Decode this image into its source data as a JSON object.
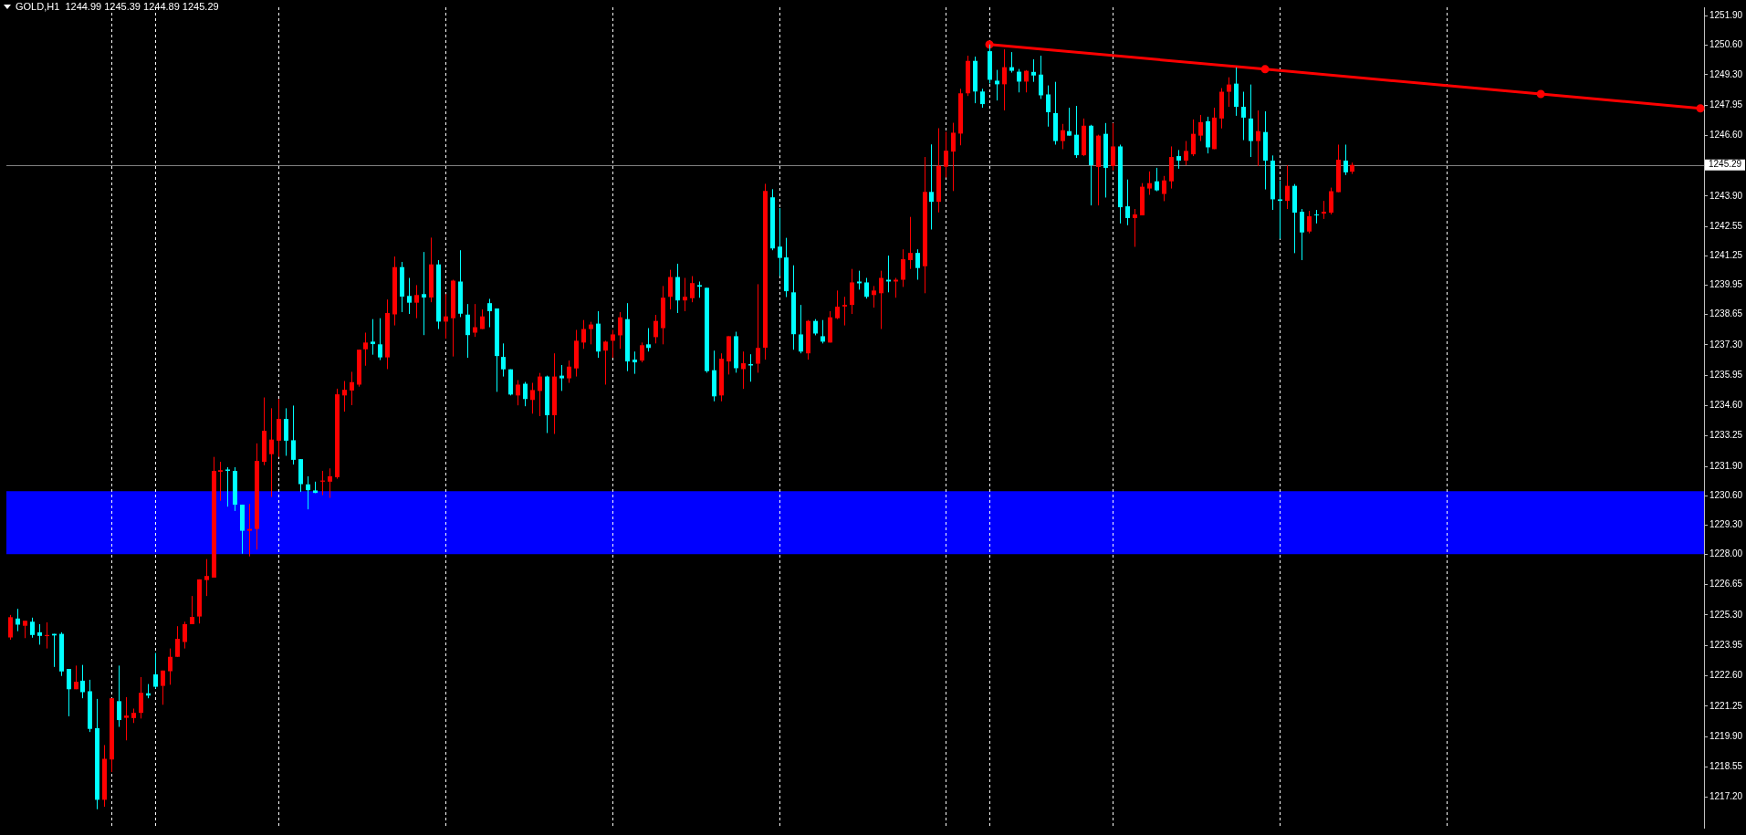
{
  "chart_data": {
    "type": "candlestick",
    "title": "GOLD,H1  1244.99 1245.39 1244.89 1245.29",
    "categories": [
      null,
      null,
      null,
      null,
      null,
      null,
      null,
      null,
      null,
      null,
      null,
      null,
      null,
      null,
      null,
      null,
      null,
      null,
      null,
      null,
      null,
      null,
      null,
      null,
      null,
      null,
      null,
      null,
      null,
      null,
      null,
      null,
      null,
      null,
      null,
      null,
      null,
      null,
      null,
      null,
      null,
      null,
      null,
      null,
      null,
      null,
      null,
      null,
      null,
      null,
      null,
      null,
      null,
      null,
      null,
      null,
      null,
      null,
      null,
      null,
      null,
      null,
      null,
      null,
      null,
      null,
      null,
      null,
      null,
      null,
      null,
      null,
      null,
      null,
      null,
      null,
      null,
      null,
      null,
      null,
      null,
      null,
      null,
      null,
      null,
      null,
      null,
      null,
      null,
      null,
      null,
      null,
      null,
      null,
      null,
      null,
      null,
      null,
      null,
      null,
      null,
      null,
      null,
      null,
      null,
      null,
      null,
      null,
      null,
      null,
      null,
      null,
      null,
      null,
      null,
      null,
      null,
      null,
      null,
      null,
      null,
      null,
      null,
      null,
      null,
      null,
      null,
      null,
      null,
      null,
      null,
      null,
      null,
      null,
      null,
      null,
      null,
      null,
      null,
      null,
      null,
      null,
      null,
      null,
      null,
      null,
      null,
      null,
      null,
      null,
      null,
      null,
      null,
      null,
      null,
      null,
      null,
      null,
      null,
      null,
      null,
      null,
      null,
      null,
      null,
      null,
      null,
      null,
      null,
      null,
      null,
      null,
      null,
      null,
      null,
      null,
      null,
      null,
      null,
      null,
      null,
      null,
      null,
      null,
      null,
      null,
      null,
      null,
      null,
      null,
      null,
      null,
      null,
      null,
      null,
      null,
      null,
      null,
      null,
      null,
      null,
      null,
      null,
      null,
      null,
      null,
      null,
      null,
      null,
      null,
      null,
      null,
      null,
      null,
      null,
      null,
      null,
      null,
      null,
      null,
      null,
      null,
      null,
      null,
      null,
      null,
      null,
      null,
      null,
      null,
      null,
      null,
      null,
      null
    ],
    "ohlc": [
      [
        1224.3,
        1225.3,
        1224.2,
        1225.2
      ],
      [
        1225.14,
        1225.57,
        1224.58,
        1224.87
      ],
      [
        1224.82,
        1225.04,
        1224.27,
        1225.04
      ],
      [
        1225.0,
        1225.18,
        1224.29,
        1224.41
      ],
      [
        1224.53,
        1224.89,
        1223.98,
        1224.37
      ],
      [
        1224.36,
        1224.97,
        1223.81,
        1224.41
      ],
      [
        1224.46,
        1224.46,
        1222.99,
        1224.39
      ],
      [
        1224.46,
        1224.53,
        1222.59,
        1222.79
      ],
      [
        1222.9,
        1222.9,
        1220.8,
        1222.0
      ],
      [
        1222.0,
        1223.05,
        1222.0,
        1222.33
      ],
      [
        1222.38,
        1223.08,
        1221.6,
        1221.87
      ],
      [
        1221.91,
        1222.42,
        1220.1,
        1220.24
      ],
      [
        1220.27,
        1221.57,
        1216.67,
        1217.09
      ],
      [
        1217.09,
        1219.52,
        1216.78,
        1218.91
      ],
      [
        1218.88,
        1221.6,
        1218.32,
        1221.6
      ],
      [
        1221.47,
        1223.05,
        1220.33,
        1220.63
      ],
      [
        1220.73,
        1221.65,
        1219.73,
        1220.83
      ],
      [
        1220.72,
        1221.14,
        1220.5,
        1220.95
      ],
      [
        1220.95,
        1222.54,
        1220.7,
        1221.84
      ],
      [
        1221.82,
        1222.23,
        1221.6,
        1221.72
      ],
      [
        1222.66,
        1223.61,
        1222.03,
        1222.11
      ],
      [
        1222.15,
        1222.83,
        1221.31,
        1222.83
      ],
      [
        1222.8,
        1223.81,
        1222.2,
        1223.44
      ],
      [
        1223.44,
        1224.8,
        1223.44,
        1224.24
      ],
      [
        1224.1,
        1225.0,
        1223.81,
        1224.89
      ],
      [
        1224.89,
        1226.14,
        1224.89,
        1225.21
      ],
      [
        1225.23,
        1226.88,
        1224.92,
        1226.88
      ],
      [
        1226.85,
        1227.78,
        1226.14,
        1227.03
      ],
      [
        1226.96,
        1232.32,
        1226.96,
        1231.7
      ],
      [
        1231.66,
        1232.1,
        1230.37,
        1231.73
      ],
      [
        1231.76,
        1231.86,
        1230.11,
        1231.7
      ],
      [
        1231.7,
        1231.86,
        1229.92,
        1230.2
      ],
      [
        1230.2,
        1230.2,
        1228.02,
        1229.04
      ],
      [
        1229.04,
        1230.23,
        1227.9,
        1229.12
      ],
      [
        1229.12,
        1232.92,
        1228.2,
        1232.14
      ],
      [
        1232.1,
        1234.96,
        1231.95,
        1233.48
      ],
      [
        1232.44,
        1234.48,
        1230.54,
        1233.09
      ],
      [
        1233.04,
        1234.89,
        1232.32,
        1234.01
      ],
      [
        1234.01,
        1234.48,
        1232.37,
        1233.04
      ],
      [
        1233.06,
        1234.6,
        1231.98,
        1232.19
      ],
      [
        1232.22,
        1232.22,
        1230.76,
        1231.11
      ],
      [
        1231.1,
        1231.46,
        1229.99,
        1230.84
      ],
      [
        1230.83,
        1231.22,
        1230.71,
        1230.72
      ],
      [
        1231.22,
        1231.7,
        1230.62,
        1231.27
      ],
      [
        1231.22,
        1231.81,
        1230.5,
        1231.46
      ],
      [
        1231.42,
        1235.35,
        1231.35,
        1235.1
      ],
      [
        1235.05,
        1235.69,
        1234.33,
        1235.3
      ],
      [
        1235.27,
        1236.1,
        1234.62,
        1235.64
      ],
      [
        1235.53,
        1237.08,
        1235.44,
        1237.08
      ],
      [
        1237.1,
        1237.84,
        1236.37,
        1237.4
      ],
      [
        1237.44,
        1238.44,
        1236.86,
        1237.33
      ],
      [
        1237.32,
        1238.48,
        1236.62,
        1236.74
      ],
      [
        1236.74,
        1239.31,
        1236.22,
        1238.71
      ],
      [
        1238.65,
        1241.22,
        1238.16,
        1240.75
      ],
      [
        1240.75,
        1240.98,
        1238.75,
        1239.44
      ],
      [
        1239.47,
        1240.27,
        1238.67,
        1239.17
      ],
      [
        1239.17,
        1239.95,
        1238.48,
        1239.51
      ],
      [
        1239.55,
        1241.42,
        1237.73,
        1239.4
      ],
      [
        1239.4,
        1242.06,
        1239.19,
        1240.87
      ],
      [
        1240.87,
        1241.06,
        1238.0,
        1238.33
      ],
      [
        1238.33,
        1239.55,
        1237.57,
        1238.56
      ],
      [
        1238.48,
        1240.19,
        1236.78,
        1240.15
      ],
      [
        1240.11,
        1241.5,
        1238.53,
        1238.68
      ],
      [
        1238.64,
        1239.11,
        1236.72,
        1237.73
      ],
      [
        1237.84,
        1239.11,
        1237.65,
        1238.08
      ],
      [
        1238.0,
        1238.87,
        1238.0,
        1238.56
      ],
      [
        1239.15,
        1239.34,
        1238.08,
        1238.79
      ],
      [
        1238.91,
        1238.91,
        1235.21,
        1236.8
      ],
      [
        1236.76,
        1237.36,
        1235.89,
        1236.21
      ],
      [
        1236.21,
        1236.21,
        1235.05,
        1235.09
      ],
      [
        1235.05,
        1235.73,
        1234.61,
        1235.53
      ],
      [
        1235.57,
        1235.65,
        1234.57,
        1234.89
      ],
      [
        1234.85,
        1235.61,
        1234.24,
        1235.29
      ],
      [
        1235.25,
        1236.05,
        1234.13,
        1235.89
      ],
      [
        1235.89,
        1235.93,
        1233.38,
        1234.17
      ],
      [
        1234.17,
        1236.92,
        1233.34,
        1235.89
      ],
      [
        1235.93,
        1236.4,
        1235.25,
        1235.81
      ],
      [
        1235.81,
        1236.6,
        1235.61,
        1236.33
      ],
      [
        1236.25,
        1237.96,
        1235.89,
        1237.48
      ],
      [
        1237.4,
        1238.4,
        1237.12,
        1238.0
      ],
      [
        1238.0,
        1238.32,
        1237.32,
        1238.2
      ],
      [
        1238.24,
        1238.79,
        1236.72,
        1237.0
      ],
      [
        1237.04,
        1237.48,
        1235.53,
        1237.44
      ],
      [
        1237.48,
        1237.96,
        1236.72,
        1237.76
      ],
      [
        1237.72,
        1238.75,
        1237.12,
        1238.52
      ],
      [
        1238.44,
        1239.15,
        1236.13,
        1236.56
      ],
      [
        1236.64,
        1237.0,
        1236.01,
        1236.52
      ],
      [
        1236.6,
        1237.4,
        1236.52,
        1237.28
      ],
      [
        1237.32,
        1238.04,
        1237.0,
        1237.16
      ],
      [
        1237.64,
        1238.63,
        1237.36,
        1238.36
      ],
      [
        1238.04,
        1239.91,
        1237.32,
        1239.39
      ],
      [
        1239.43,
        1240.63,
        1238.87,
        1240.31
      ],
      [
        1240.31,
        1240.9,
        1238.71,
        1239.27
      ],
      [
        1239.27,
        1240.27,
        1238.79,
        1239.43
      ],
      [
        1239.37,
        1240.35,
        1239.19,
        1240.04
      ],
      [
        1239.95,
        1240.11,
        1239.39,
        1239.88
      ],
      [
        1239.83,
        1239.83,
        1236.06,
        1236.13
      ],
      [
        1236.17,
        1237.04,
        1234.79,
        1235.01
      ],
      [
        1235.05,
        1236.92,
        1234.79,
        1236.68
      ],
      [
        1236.56,
        1237.68,
        1235.98,
        1237.68
      ],
      [
        1237.68,
        1237.88,
        1236.06,
        1236.26
      ],
      [
        1236.22,
        1237.0,
        1235.34,
        1236.48
      ],
      [
        1236.44,
        1236.88,
        1235.66,
        1236.38
      ],
      [
        1236.46,
        1239.99,
        1236.06,
        1237.16
      ],
      [
        1237.17,
        1244.45,
        1236.64,
        1244.13
      ],
      [
        1243.85,
        1244.21,
        1241.5,
        1241.58
      ],
      [
        1241.66,
        1243.37,
        1240.35,
        1241.16
      ],
      [
        1241.18,
        1242.05,
        1239.42,
        1239.68
      ],
      [
        1239.63,
        1240.83,
        1237.08,
        1237.77
      ],
      [
        1237.76,
        1239.07,
        1236.92,
        1237.0
      ],
      [
        1236.92,
        1238.4,
        1236.64,
        1238.36
      ],
      [
        1238.36,
        1238.44,
        1237.72,
        1237.8
      ],
      [
        1237.68,
        1238.4,
        1237.36,
        1237.44
      ],
      [
        1237.4,
        1238.79,
        1237.4,
        1238.52
      ],
      [
        1238.48,
        1239.71,
        1238.44,
        1238.99
      ],
      [
        1239.0,
        1239.43,
        1238.16,
        1239.07
      ],
      [
        1239.07,
        1240.67,
        1238.67,
        1240.07
      ],
      [
        1240.11,
        1240.59,
        1239.75,
        1240.03
      ],
      [
        1240.07,
        1240.27,
        1239.35,
        1239.43
      ],
      [
        1239.51,
        1239.91,
        1238.95,
        1239.71
      ],
      [
        1239.59,
        1240.59,
        1238.0,
        1240.27
      ],
      [
        1240.19,
        1241.26,
        1239.63,
        1240.11
      ],
      [
        1240.11,
        1240.27,
        1239.39,
        1240.19
      ],
      [
        1240.19,
        1241.54,
        1239.87,
        1241.1
      ],
      [
        1241.06,
        1242.98,
        1240.67,
        1241.38
      ],
      [
        1241.38,
        1241.54,
        1240.19,
        1240.71
      ],
      [
        1240.79,
        1245.64,
        1239.59,
        1244.09
      ],
      [
        1244.09,
        1246.2,
        1242.42,
        1243.65
      ],
      [
        1243.65,
        1246.92,
        1243.18,
        1245.25
      ],
      [
        1245.21,
        1246.76,
        1244.73,
        1245.92
      ],
      [
        1245.88,
        1247.16,
        1244.13,
        1246.72
      ],
      [
        1246.68,
        1248.67,
        1246.16,
        1248.47
      ],
      [
        1248.47,
        1250.14,
        1248.35,
        1249.91
      ],
      [
        1249.91,
        1250.1,
        1248.03,
        1248.55
      ],
      [
        1248.55,
        1248.67,
        1247.83,
        1247.99
      ],
      [
        1250.34,
        1250.64,
        1248.91,
        1249.07
      ],
      [
        1249.03,
        1249.51,
        1248.15,
        1248.87
      ],
      [
        1248.87,
        1250.42,
        1247.71,
        1249.63
      ],
      [
        1249.63,
        1250.3,
        1249.39,
        1249.47
      ],
      [
        1249.43,
        1249.55,
        1248.51,
        1248.99
      ],
      [
        1248.99,
        1249.5,
        1248.51,
        1249.47
      ],
      [
        1249.42,
        1249.98,
        1248.98,
        1249.26
      ],
      [
        1249.3,
        1250.14,
        1248.22,
        1248.38
      ],
      [
        1248.42,
        1248.82,
        1246.99,
        1247.63
      ],
      [
        1247.59,
        1248.98,
        1246.19,
        1246.35
      ],
      [
        1246.35,
        1247.11,
        1245.99,
        1246.83
      ],
      [
        1246.79,
        1247.83,
        1246.59,
        1246.59
      ],
      [
        1246.63,
        1247.91,
        1245.6,
        1245.72
      ],
      [
        1245.72,
        1247.35,
        1245.68,
        1247.03
      ],
      [
        1247.03,
        1247.07,
        1243.49,
        1245.28
      ],
      [
        1245.2,
        1246.63,
        1243.49,
        1246.59
      ],
      [
        1246.67,
        1247.15,
        1243.84,
        1245.16
      ],
      [
        1245.24,
        1247.15,
        1245.04,
        1246.11
      ],
      [
        1246.11,
        1246.19,
        1242.69,
        1243.41
      ],
      [
        1243.45,
        1244.64,
        1242.61,
        1242.93
      ],
      [
        1242.93,
        1243.33,
        1241.65,
        1243.09
      ],
      [
        1243.05,
        1244.48,
        1243.05,
        1244.32
      ],
      [
        1244.24,
        1245.0,
        1243.96,
        1244.48
      ],
      [
        1244.56,
        1245.16,
        1244.12,
        1244.16
      ],
      [
        1244.0,
        1244.8,
        1243.68,
        1244.6
      ],
      [
        1244.56,
        1246.11,
        1244.24,
        1245.64
      ],
      [
        1245.68,
        1245.95,
        1245.12,
        1245.48
      ],
      [
        1245.48,
        1246.35,
        1245.28,
        1245.91
      ],
      [
        1245.76,
        1247.31,
        1245.68,
        1246.67
      ],
      [
        1246.59,
        1247.51,
        1246.35,
        1247.19
      ],
      [
        1247.23,
        1247.43,
        1245.8,
        1246.07
      ],
      [
        1245.99,
        1247.83,
        1245.99,
        1247.39
      ],
      [
        1247.35,
        1248.7,
        1246.91,
        1248.54
      ],
      [
        1248.54,
        1249.18,
        1247.87,
        1248.86
      ],
      [
        1248.9,
        1249.62,
        1247.47,
        1247.87
      ],
      [
        1247.87,
        1248.54,
        1246.39,
        1247.39
      ],
      [
        1247.35,
        1248.86,
        1245.64,
        1246.35
      ],
      [
        1246.35,
        1247.71,
        1245.24,
        1246.79
      ],
      [
        1246.75,
        1247.67,
        1244.2,
        1245.48
      ],
      [
        1245.48,
        1245.71,
        1243.29,
        1243.76
      ],
      [
        1243.76,
        1244.6,
        1242.01,
        1243.69
      ],
      [
        1243.69,
        1245.28,
        1243.33,
        1244.36
      ],
      [
        1244.36,
        1244.44,
        1241.37,
        1243.17
      ],
      [
        1243.21,
        1243.33,
        1241.06,
        1242.29
      ],
      [
        1242.33,
        1243.25,
        1242.25,
        1243.01
      ],
      [
        1243.09,
        1243.29,
        1242.69,
        1243.05
      ],
      [
        1243.13,
        1243.69,
        1242.89,
        1243.21
      ],
      [
        1243.17,
        1244.28,
        1243.09,
        1244.12
      ],
      [
        1244.08,
        1246.19,
        1244.08,
        1245.52
      ],
      [
        1245.48,
        1246.19,
        1244.84,
        1244.96
      ],
      [
        1244.99,
        1245.39,
        1244.89,
        1245.29
      ],
      null,
      null,
      null,
      null,
      null,
      null,
      null,
      null,
      null,
      null,
      null,
      null,
      null,
      null,
      null,
      null,
      null,
      null,
      null,
      null,
      null,
      null,
      null,
      null,
      null,
      null,
      null,
      null,
      null,
      null,
      null,
      null,
      null,
      null,
      null,
      null,
      null,
      null,
      null,
      null,
      null,
      null,
      null,
      null,
      null,
      null,
      null,
      null
    ],
    "colors": [
      "#ff0000",
      "#00ffff",
      "#ff0000",
      "#00ffff",
      "#00ffff",
      "#ff0000",
      "#00ffff",
      "#00ffff",
      "#00ffff",
      "#ff0000",
      "#00ffff",
      "#00ffff",
      "#00ffff",
      "#ff0000",
      "#ff0000",
      "#00ffff",
      "#ff0000",
      "#ff0000",
      "#ff0000",
      "#00ffff",
      "#00ffff",
      "#ff0000",
      "#ff0000",
      "#ff0000",
      "#ff0000",
      "#ff0000",
      "#ff0000",
      "#ff0000",
      "#ff0000",
      "#ff0000",
      "#00ffff",
      "#00ffff",
      "#00ffff",
      "#ff0000",
      "#ff0000",
      "#ff0000",
      "#ff0000",
      "#ff0000",
      "#00ffff",
      "#00ffff",
      "#00ffff",
      "#00ffff",
      "#00ffff",
      "#ff0000",
      "#ff0000",
      "#ff0000",
      "#ff0000",
      "#ff0000",
      "#ff0000",
      "#ff0000",
      "#00ffff",
      "#00ffff",
      "#ff0000",
      "#ff0000",
      "#00ffff",
      "#00ffff",
      "#ff0000",
      "#00ffff",
      "#ff0000",
      "#00ffff",
      "#ff0000",
      "#ff0000",
      "#00ffff",
      "#00ffff",
      "#ff0000",
      "#ff0000",
      "#00ffff",
      "#00ffff",
      "#00ffff",
      "#00ffff",
      "#ff0000",
      "#00ffff",
      "#ff0000",
      "#ff0000",
      "#00ffff",
      "#ff0000",
      "#00ffff",
      "#ff0000",
      "#ff0000",
      "#ff0000",
      "#ff0000",
      "#00ffff",
      "#ff0000",
      "#ff0000",
      "#ff0000",
      "#00ffff",
      "#00ffff",
      "#ff0000",
      "#00ffff",
      "#ff0000",
      "#ff0000",
      "#ff0000",
      "#00ffff",
      "#ff0000",
      "#ff0000",
      "#00ffff",
      "#00ffff",
      "#00ffff",
      "#ff0000",
      "#ff0000",
      "#00ffff",
      "#ff0000",
      "#00ffff",
      "#ff0000",
      "#ff0000",
      "#00ffff",
      "#00ffff",
      "#00ffff",
      "#00ffff",
      "#00ffff",
      "#ff0000",
      "#00ffff",
      "#00ffff",
      "#ff0000",
      "#ff0000",
      "#ff0000",
      "#ff0000",
      "#00ffff",
      "#00ffff",
      "#ff0000",
      "#ff0000",
      "#00ffff",
      "#ff0000",
      "#ff0000",
      "#ff0000",
      "#00ffff",
      "#ff0000",
      "#00ffff",
      "#ff0000",
      "#ff0000",
      "#ff0000",
      "#ff0000",
      "#ff0000",
      "#00ffff",
      "#00ffff",
      "#00ffff",
      "#00ffff",
      "#ff0000",
      "#00ffff",
      "#00ffff",
      "#ff0000",
      "#00ffff",
      "#00ffff",
      "#00ffff",
      "#00ffff",
      "#ff0000",
      "#00ffff",
      "#00ffff",
      "#ff0000",
      "#00ffff",
      "#ff0000",
      "#00ffff",
      "#ff0000",
      "#00ffff",
      "#00ffff",
      "#ff0000",
      "#ff0000",
      "#ff0000",
      "#00ffff",
      "#ff0000",
      "#ff0000",
      "#00ffff",
      "#ff0000",
      "#ff0000",
      "#ff0000",
      "#00ffff",
      "#ff0000",
      "#ff0000",
      "#ff0000",
      "#00ffff",
      "#00ffff",
      "#00ffff",
      "#ff0000",
      "#00ffff",
      "#00ffff",
      "#00ffff",
      "#ff0000",
      "#00ffff",
      "#00ffff",
      "#ff0000",
      "#00ffff",
      "#ff0000",
      "#ff0000",
      "#ff0000",
      "#00ffff",
      "#ff0000",
      null,
      null,
      null,
      null,
      null,
      null,
      null,
      null,
      null,
      null,
      null,
      null,
      null,
      null,
      null,
      null,
      null,
      null,
      null,
      null,
      null,
      null,
      null,
      null,
      null,
      null,
      null,
      null,
      null,
      null,
      null,
      null,
      null,
      null,
      null,
      null,
      null,
      null,
      null,
      null,
      null,
      null,
      null,
      null,
      null,
      null,
      null,
      null
    ],
    "series": [
      {
        "type": "line",
        "color": "#ff0000",
        "marker": "circle",
        "values": [
          null,
          null,
          null,
          null,
          null,
          null,
          null,
          null,
          null,
          null,
          null,
          null,
          null,
          null,
          null,
          null,
          null,
          null,
          null,
          null,
          null,
          null,
          null,
          null,
          null,
          null,
          null,
          null,
          null,
          null,
          null,
          null,
          null,
          null,
          null,
          null,
          null,
          null,
          null,
          null,
          null,
          null,
          null,
          null,
          null,
          null,
          null,
          null,
          null,
          null,
          null,
          null,
          null,
          null,
          null,
          null,
          null,
          null,
          null,
          null,
          null,
          null,
          null,
          null,
          null,
          null,
          null,
          null,
          null,
          null,
          null,
          null,
          null,
          null,
          null,
          null,
          null,
          null,
          null,
          null,
          null,
          null,
          null,
          null,
          null,
          null,
          null,
          null,
          null,
          null,
          null,
          null,
          null,
          null,
          null,
          null,
          null,
          null,
          null,
          null,
          null,
          null,
          null,
          null,
          null,
          null,
          null,
          null,
          null,
          null,
          null,
          null,
          null,
          null,
          null,
          null,
          null,
          null,
          null,
          null,
          null,
          null,
          null,
          null,
          null,
          null,
          null,
          null,
          null,
          null,
          null,
          null,
          null,
          null,
          null,
          1250.64,
          null,
          null,
          null,
          null,
          null,
          null,
          null,
          null,
          null,
          null,
          null,
          null,
          null,
          null,
          null,
          null,
          null,
          null,
          null,
          null,
          null,
          null,
          null,
          null,
          null,
          null,
          null,
          null,
          null,
          null,
          null,
          null,
          null,
          null,
          null,
          null,
          null,
          1249.54,
          null,
          null,
          null,
          null,
          null,
          null,
          null,
          null,
          null,
          null,
          null,
          null,
          null,
          null,
          null,
          null,
          null,
          null,
          null,
          null,
          null,
          null,
          null,
          null,
          null,
          null,
          null,
          null,
          null,
          null,
          null,
          null,
          null,
          null,
          null,
          null,
          null,
          1248.44,
          null,
          null,
          null,
          null,
          null,
          null,
          null,
          null,
          null,
          null,
          null,
          null,
          null,
          null,
          null,
          null,
          null,
          null,
          null,
          null,
          null,
          1247.8
        ]
      }
    ],
    "ylim": [
      1215.85,
      1252.29
    ],
    "yticks": [
      {
        "value": 1251.9,
        "label": "1251.90"
      },
      {
        "value": 1250.6,
        "label": "1250.60"
      },
      {
        "value": 1249.3,
        "label": "1249.30"
      },
      {
        "value": 1247.95,
        "label": "1247.95"
      },
      {
        "value": 1246.6,
        "label": "1246.60"
      },
      {
        "value": 1243.9,
        "label": "1243.90"
      },
      {
        "value": 1242.55,
        "label": "1242.55"
      },
      {
        "value": 1241.25,
        "label": "1241.25"
      },
      {
        "value": 1239.95,
        "label": "1239.95"
      },
      {
        "value": 1238.65,
        "label": "1238.65"
      },
      {
        "value": 1237.3,
        "label": "1237.30"
      },
      {
        "value": 1235.95,
        "label": "1235.95"
      },
      {
        "value": 1234.6,
        "label": "1234.60"
      },
      {
        "value": 1233.25,
        "label": "1233.25"
      },
      {
        "value": 1231.9,
        "label": "1231.90"
      },
      {
        "value": 1230.6,
        "label": "1230.60"
      },
      {
        "value": 1229.3,
        "label": "1229.30"
      },
      {
        "value": 1228.0,
        "label": "1228.00"
      },
      {
        "value": 1226.65,
        "label": "1226.65"
      },
      {
        "value": 1225.3,
        "label": "1225.30"
      },
      {
        "value": 1223.95,
        "label": "1223.95"
      },
      {
        "value": 1222.6,
        "label": "1222.60"
      },
      {
        "value": 1221.25,
        "label": "1221.25"
      },
      {
        "value": 1219.9,
        "label": "1219.90"
      },
      {
        "value": 1218.55,
        "label": "1218.55"
      },
      {
        "value": 1217.2,
        "label": "1217.20"
      }
    ],
    "tick_labels": "y",
    "bands": [
      {
        "axis": "y",
        "from": 1228.0,
        "to": 1230.8,
        "color": "#0000ff"
      }
    ],
    "ref_lines": [
      {
        "axis": "y",
        "value": 1245.29,
        "label": "1245.29",
        "color": "#808080",
        "line_style": "solid"
      }
    ]
  }
}
